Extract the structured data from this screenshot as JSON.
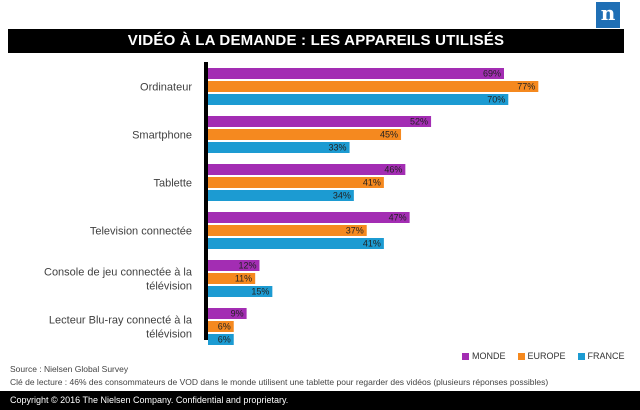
{
  "logo": {
    "text": "n"
  },
  "title": "VIDÉO À LA DEMANDE : LES APPAREILS UTILISÉS",
  "source": "Source : Nielsen Global Survey",
  "note": "Clé de lecture : 46% des consommateurs de VOD dans le monde utilisent une tablette pour regarder des vidéos (plusieurs réponses possibles)",
  "footer": "Copyright © 2016 The Nielsen Company. Confidential and proprietary.",
  "chart_data": {
    "type": "bar",
    "orientation": "horizontal",
    "categories": [
      [
        "Ordinateur"
      ],
      [
        "Smartphone"
      ],
      [
        "Tablette"
      ],
      [
        "Television connectée"
      ],
      [
        "Console de jeu connectée à la",
        "télévision"
      ],
      [
        "Lecteur Blu-ray connecté à la",
        "télévision"
      ]
    ],
    "series": [
      {
        "name": "MONDE",
        "color": "#a32db3",
        "values": [
          69,
          52,
          46,
          47,
          12,
          9
        ],
        "labels": [
          "69%",
          "52%",
          "46%",
          "47%",
          "12%",
          "9%"
        ]
      },
      {
        "name": "EUROPE",
        "color": "#f5891f",
        "values": [
          77,
          45,
          41,
          37,
          11,
          6
        ],
        "labels": [
          "77%",
          "45%",
          "41%",
          "37%",
          "11%",
          "6%"
        ]
      },
      {
        "name": "FRANCE",
        "color": "#1c9bd2",
        "values": [
          70,
          33,
          34,
          41,
          15,
          6
        ],
        "labels": [
          "70%",
          "33%",
          "34%",
          "41%",
          "15%",
          "6%"
        ]
      }
    ],
    "legend_position": "bottom-right",
    "grid": false,
    "axis_line": "thick-black-left"
  }
}
